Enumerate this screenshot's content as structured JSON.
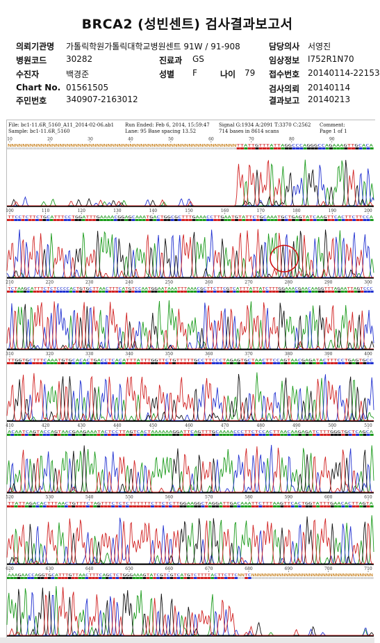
{
  "report": {
    "title": "BRCA2 (성빈센트) 검사결과보고서",
    "fields": [
      {
        "label": "의뢰기관명",
        "value": "가톨릭학원가톨릭대학교병원센트 91W / 91-908"
      },
      {
        "label": "병원코드",
        "value": "30282"
      },
      {
        "label": "진료과",
        "value": "GS"
      },
      {
        "label": "수진자",
        "value": "백경준"
      },
      {
        "label": "성별",
        "value": "F"
      },
      {
        "label": "나이",
        "value": "79"
      },
      {
        "label": "Chart No.",
        "value": "01561505"
      },
      {
        "label": "주민번호",
        "value": "340907-2163012"
      },
      {
        "label": "담당의사",
        "value": "서영진"
      },
      {
        "label": "임상정보",
        "value": "I752R1N70"
      },
      {
        "label": "접수번호",
        "value": "20140114-22153"
      },
      {
        "label": "검사의뢰",
        "value": "20140114"
      },
      {
        "label": "결과보고",
        "value": "20140213"
      }
    ]
  },
  "trace": {
    "file": "File: bc1-11.6R_5160_A11_2014-02-06.ab1",
    "sample": "Sample: bc1-11.6R_5160",
    "run": "Run Ended: Feb 6, 2014, 15:59:47",
    "lane": "Lane: 95   Base spacing 13.52",
    "signal": "Signal G:1934 A:2091 T:3370 C:2562",
    "bases": "714 bases in 8614 scans",
    "comment": "Comment:",
    "page": "Page 1 of 1",
    "colors": {
      "A": "#1a9a1a",
      "C": "#2030d0",
      "G": "#111111",
      "T": "#d02020"
    },
    "panels": [
      {
        "start": 10,
        "end": 99,
        "ticks": [
          10,
          20,
          30,
          40,
          50,
          60,
          70,
          80,
          90
        ],
        "seq": "NNNNNNNNNNNNNNNNNNNNNNNNNNNNNNNNNNNNNNNNNNNNNNNNNNNNNNNNNNNNNNTTATTGTTTATTAGGCCCAGGGCCAGAAAGTTGCACA"
      },
      {
        "start": 100,
        "end": 200,
        "ticks": [
          100,
          110,
          120,
          130,
          140,
          150,
          160,
          170,
          180,
          190,
          200
        ],
        "seq": "TTCCTCTTCTGCATTTCCTGGATTTGAAAACGGAGCAAATGACTGGCGCTTTGAAACCTTGAATGTATTCTGCAAATGCTGAGTATCAAGTTCACTTCTTCCA"
      },
      {
        "start": 210,
        "end": 300,
        "ticks": [
          210,
          220,
          230,
          240,
          250,
          260,
          270,
          280,
          290,
          300
        ],
        "seq": "TCTAAGCATTTCTCTCCCCACTGTGCTTAACTTTCATGTCCAATGGAATAAATTTAAACGCTTCTTCGTCATTTATTATCTTTGGAAACGAACAAGGTTTAGAATTAGTCCC"
      },
      {
        "start": 310,
        "end": 400,
        "ticks": [
          310,
          320,
          330,
          340,
          350,
          360,
          370,
          380,
          390,
          400
        ],
        "seq": "TTGGTGCTTTCAAATGTGCACACTGACCTCACATTTATTTGGTTCTGTTTTTGCCTTCCCTAGAGTGCTAACTTCCAGTAACGAGATACTTTCCTGAGTGCC"
      },
      {
        "start": 410,
        "end": 510,
        "ticks": [
          410,
          420,
          430,
          440,
          450,
          460,
          470,
          480,
          490,
          500,
          510
        ],
        "seq": "ACAATCAGTACCAGTAACGAAGAAATACTCCTTAGTCACTAAAAAAGGATTCAGTTTGCAAAACCCTTCTCCACTTAACAAGAGATCTTTGGGTGCTCAGCA"
      },
      {
        "start": 520,
        "end": 610,
        "ticks": [
          520,
          530,
          540,
          550,
          560,
          570,
          580,
          590,
          600,
          610
        ],
        "seq": "TTATTAGACACTTTAACTGTTTCTAGTTTCTCTCTTTTTTCTTCTCTTGGAAGGCTAGGATTGACAAATTCTTTAAGTTCACTGGTATTTGAACACTTAGTA"
      },
      {
        "start": 620,
        "end": 710,
        "ticks": [
          620,
          630,
          640,
          650,
          660,
          670,
          680,
          690,
          700,
          710
        ],
        "seq": "AAAGAACCAGGTGCATTTGTTAACTTTCAGCTCTGGGAAAGTATCGTCGTCATGTCTTTTACTTCTTCNNTCNNNNNNNNNNNNNNNNNNNNNNNNNNNNNNNNNNNN"
      }
    ]
  }
}
